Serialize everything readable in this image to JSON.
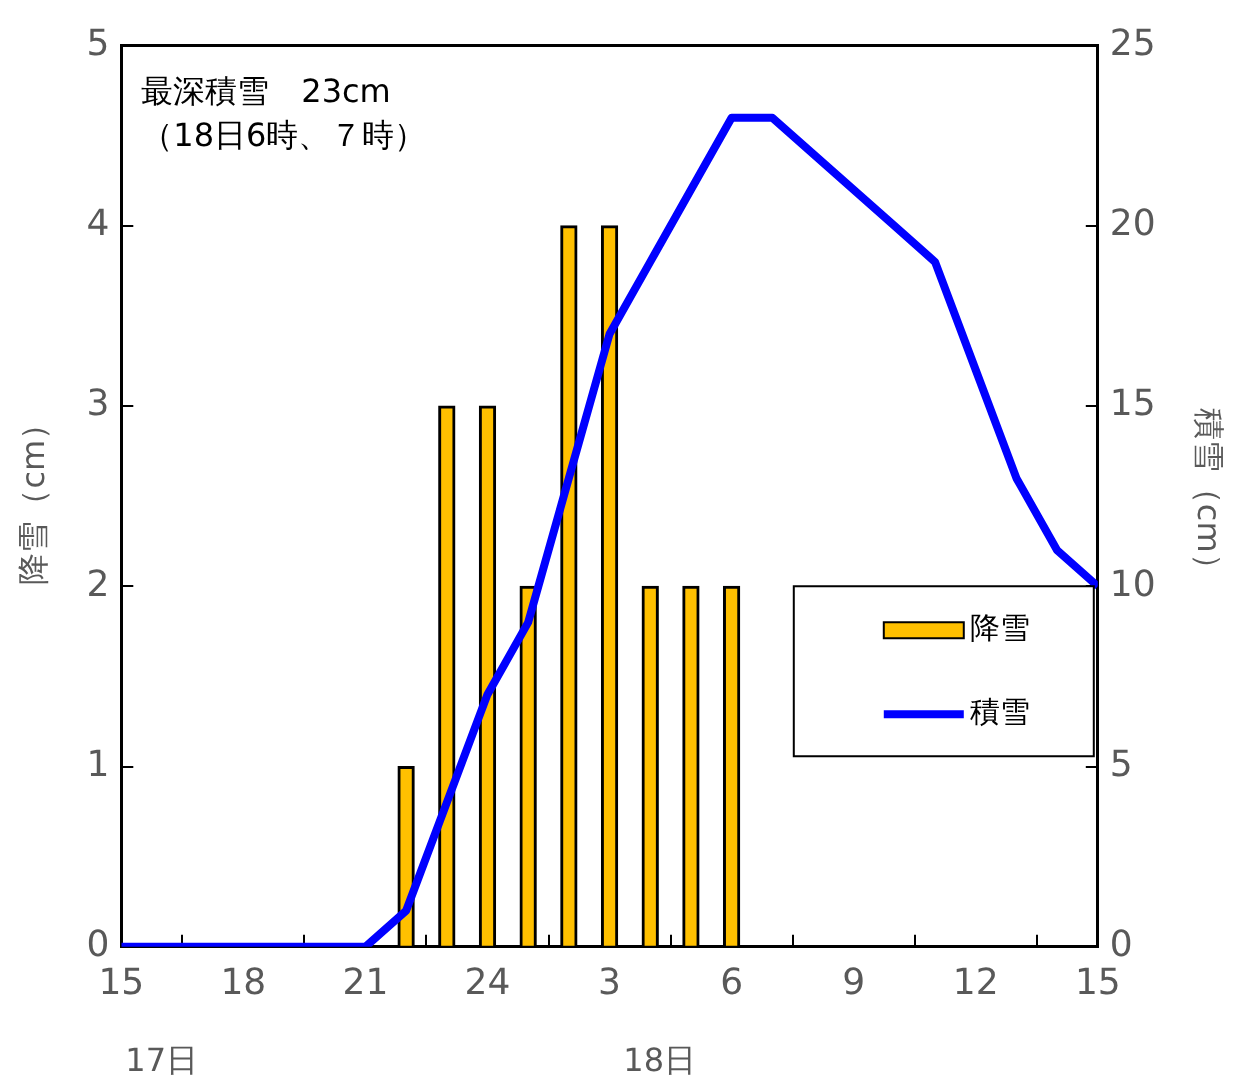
{
  "chart_data": {
    "type": "bar",
    "ylabel": "降雪（cm）",
    "y2label": "積雪（cm）",
    "categories": [
      "15",
      null,
      null,
      "18",
      null,
      null,
      "21",
      null,
      null,
      "24",
      null,
      null,
      "3",
      null,
      null,
      "6",
      null,
      null,
      "9",
      null,
      null,
      "12",
      null,
      null,
      "15"
    ],
    "series": [
      {
        "name": "降雪",
        "color": "#ffc000",
        "values": [
          0,
          0,
          0,
          0,
          0,
          0,
          0,
          1,
          3,
          3,
          2,
          4,
          4,
          2,
          2,
          2,
          0,
          0,
          0,
          0,
          0,
          0,
          0,
          0,
          0
        ]
      },
      {
        "name": "積雪",
        "type": "line",
        "axis": "y2",
        "color": "#0000ff",
        "values": [
          0,
          0,
          0,
          0,
          0,
          0,
          0,
          1,
          4,
          7,
          9,
          13,
          17,
          19,
          21,
          23,
          23,
          22,
          21,
          20,
          19,
          16,
          13,
          11,
          10
        ]
      }
    ],
    "ylim": [
      0,
      5
    ],
    "yticks": [
      0,
      1,
      2,
      3,
      4,
      5
    ],
    "y2lim": [
      0,
      25
    ],
    "y2ticks": [
      0,
      5,
      10,
      15,
      20,
      25
    ],
    "annotations": [
      "最深積雪　23cm",
      "（18日6時、７時）",
      "17日",
      "18日"
    ],
    "legend": "right",
    "grid": false
  }
}
